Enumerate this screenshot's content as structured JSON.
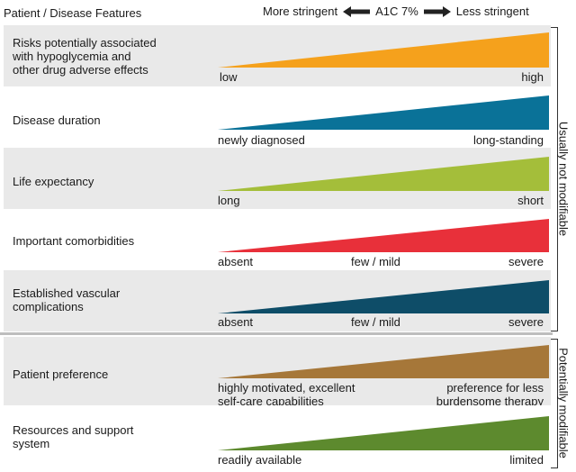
{
  "header": {
    "left_title": "Patient / Disease Features",
    "more_stringent": "More stringent",
    "a1c": "A1C 7%",
    "less_stringent": "Less stringent"
  },
  "rows": [
    {
      "label": "Risks potentially associated\nwith hypoglycemia and\nother drug adverse effects",
      "color": "#f5a11c",
      "left": "low",
      "mid": "",
      "right": "high"
    },
    {
      "label": "Disease duration",
      "color": "#0a7298",
      "left": "newly diagnosed",
      "mid": "",
      "right": "long-standing"
    },
    {
      "label": "Life expectancy",
      "color": "#a4be3a",
      "left": "long",
      "mid": "",
      "right": "short"
    },
    {
      "label": "Important comorbidities",
      "color": "#e8303a",
      "left": "absent",
      "mid": "few / mild",
      "right": "severe"
    },
    {
      "label": "Established vascular\ncomplications",
      "color": "#0e4d68",
      "left": "absent",
      "mid": "few / mild",
      "right": "severe"
    },
    {
      "label": "Patient preference",
      "color": "#a67739",
      "left": "highly motivated, excellent\nself-care capabilities",
      "mid": "",
      "right": "preference for less\nburdensome therapy"
    },
    {
      "label": "Resources and support\nsystem",
      "color": "#5d8a2e",
      "left": "readily available",
      "mid": "",
      "right": "limited"
    }
  ],
  "side_labels": {
    "not_modifiable": "Usually not modifiable",
    "modifiable": "Potentially modifiable"
  }
}
